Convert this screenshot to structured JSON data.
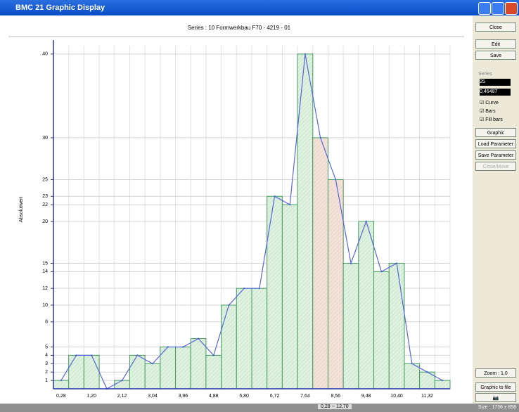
{
  "window": {
    "title": "BMC 21 Graphic Display"
  },
  "panel": {
    "close": "Close",
    "edit": "Edit",
    "save": "Save",
    "series_group": "Series",
    "series_no": "25",
    "width": "0,46487",
    "checks": [
      "Curve",
      "Bars",
      "Fill bars"
    ],
    "buttons": [
      "Graphic Parameter",
      "Load Parameter",
      "Save Parameter",
      "Close/Move"
    ],
    "zoom": "Zoom : 1,0",
    "to_file": "Graphic to file"
  },
  "status": {
    "range": "0,28 -- 12,70",
    "size": "Size : 1736 x 858"
  },
  "chart_data": {
    "type": "bar",
    "title": "Series : 10     Formwerkbau F70 - 4219 - 01",
    "ylabel": "Absolutwert",
    "categories": [
      "0,28",
      null,
      "1,20",
      null,
      "2,12",
      null,
      "3,04",
      null,
      "3,96",
      null,
      "4,88",
      null,
      "5,80",
      null,
      "6,72",
      null,
      "7,64",
      null,
      "8,56",
      null,
      "9,48",
      null,
      "10,40",
      null,
      "11,32",
      null
    ],
    "values": [
      1,
      4,
      4,
      0,
      1,
      4,
      3,
      5,
      5,
      6,
      4,
      10,
      12,
      12,
      23,
      22,
      40,
      30,
      25,
      15,
      20,
      14,
      15,
      3,
      2,
      1
    ],
    "color": "#dff1df",
    "colors": [
      "#dff1df",
      "#dff1df",
      "#dff1df",
      "#dff1df",
      "#dff1df",
      "#dff1df",
      "#dff1df",
      "#dff1df",
      "#dff1df",
      "#dff1df",
      "#dff1df",
      "#dff1df",
      "#dff1df",
      "#dff1df",
      "#dff1df",
      "#dff1df",
      "#dff1df",
      "#f8e0d8",
      "#f8e0d8",
      "#dff1df",
      "#dff1df",
      "#dff1df",
      "#dff1df",
      "#dff1df",
      "#dff1df",
      "#dff1df"
    ],
    "edge_color": "#3f9a5c",
    "line_color": "#5566dd",
    "ylim": [
      0,
      41
    ],
    "yticks": [
      1,
      2,
      3,
      4,
      5,
      8,
      10,
      12,
      14,
      15,
      20,
      22,
      23,
      25,
      30,
      40
    ],
    "grid": true
  }
}
